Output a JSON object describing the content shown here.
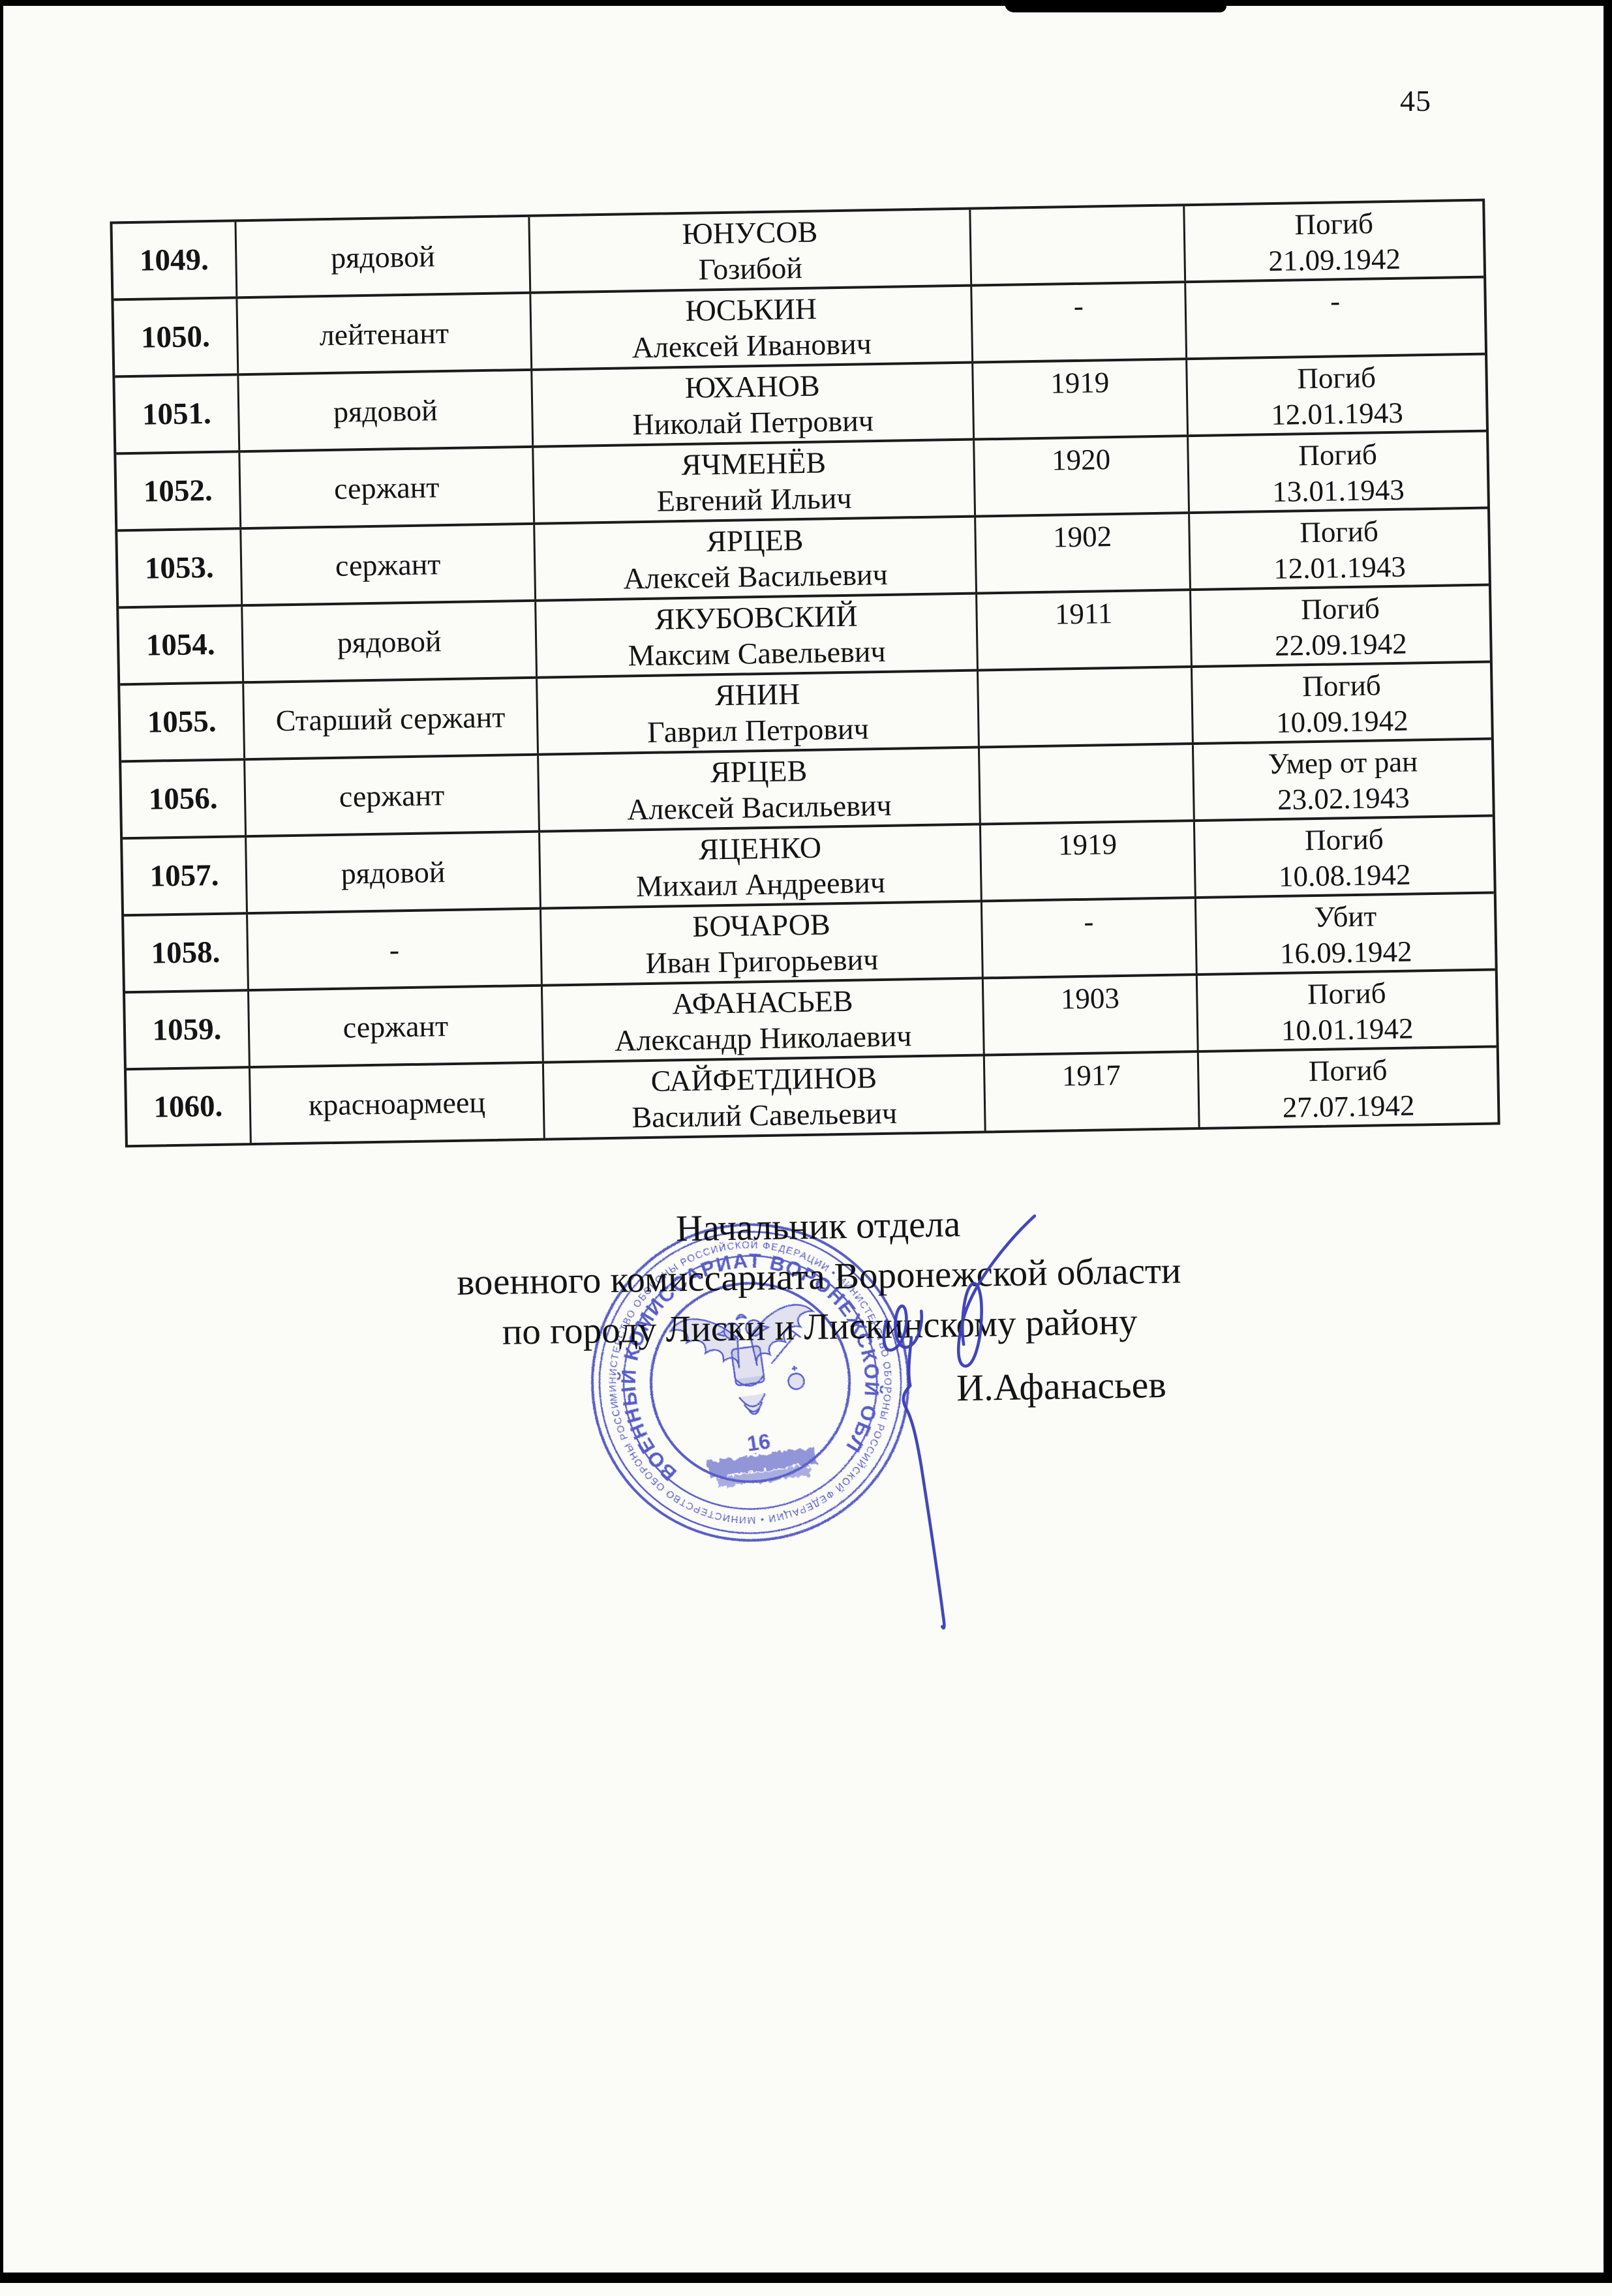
{
  "page": {
    "number": "45"
  },
  "table": {
    "rows": [
      {
        "num": "1049.",
        "rank": "рядовой",
        "surname": "ЮНУСОВ",
        "given": "Гозибой",
        "year": "",
        "status": "Погиб",
        "date": "21.09.1942"
      },
      {
        "num": "1050.",
        "rank": "лейтенант",
        "surname": "ЮСЬКИН",
        "given": "Алексей Иванович",
        "year": "-",
        "status": "-",
        "date": ""
      },
      {
        "num": "1051.",
        "rank": "рядовой",
        "surname": "ЮХАНОВ",
        "given": "Николай Петрович",
        "year": "1919",
        "status": "Погиб",
        "date": "12.01.1943"
      },
      {
        "num": "1052.",
        "rank": "сержант",
        "surname": "ЯЧМЕНЁВ",
        "given": "Евгений Ильич",
        "year": "1920",
        "status": "Погиб",
        "date": "13.01.1943"
      },
      {
        "num": "1053.",
        "rank": "сержант",
        "surname": "ЯРЦЕВ",
        "given": "Алексей Васильевич",
        "year": "1902",
        "status": "Погиб",
        "date": "12.01.1943"
      },
      {
        "num": "1054.",
        "rank": "рядовой",
        "surname": "ЯКУБОВСКИЙ",
        "given": "Максим Савельевич",
        "year": "1911",
        "status": "Погиб",
        "date": "22.09.1942"
      },
      {
        "num": "1055.",
        "rank": "Старший сержант",
        "surname": "ЯНИН",
        "given": "Гаврил Петрович",
        "year": "",
        "status": "Погиб",
        "date": "10.09.1942"
      },
      {
        "num": "1056.",
        "rank": "сержант",
        "surname": "ЯРЦЕВ",
        "given": "Алексей Васильевич",
        "year": "",
        "status": "Умер от ран",
        "date": "23.02.1943"
      },
      {
        "num": "1057.",
        "rank": "рядовой",
        "surname": "ЯЦЕНКО",
        "given": "Михаил Андреевич",
        "year": "1919",
        "status": "Погиб",
        "date": "10.08.1942"
      },
      {
        "num": "1058.",
        "rank": "-",
        "surname": "БОЧАРОВ",
        "given": "Иван Григорьевич",
        "year": "-",
        "status": "Убит",
        "date": "16.09.1942"
      },
      {
        "num": "1059.",
        "rank": "сержант",
        "surname": "АФАНАСЬЕВ",
        "given": "Александр Николаевич",
        "year": "1903",
        "status": "Погиб",
        "date": "10.01.1942"
      },
      {
        "num": "1060.",
        "rank": "красноармеец",
        "surname": "САЙФЕТДИНОВ",
        "given": "Василий Савельевич",
        "year": "1917",
        "status": "Погиб",
        "date": "27.07.1942"
      }
    ]
  },
  "footer": {
    "line1": "Начальник отдела",
    "line2": "военного комиссариата Воронежской области",
    "line3": "по городу Лиски и Лискинскому району",
    "signature_name": "И.Афанасьев"
  },
  "stamp": {
    "outer_ring_text": "МИНИСТЕРСТВО ОБОРОНЫ РОССИЙСКОЙ ФЕДЕРАЦИИ",
    "inner_ring_text": "ВОЕННЫЙ КОМИССАРИАТ ВОРОНЕЖСКОЙ ОБЛАСТИ",
    "center_number": "16"
  },
  "colors": {
    "ink": "#141416",
    "page": "#fbfbf8",
    "stamp_blue": "#4b51c3",
    "signature_blue": "#383db6"
  }
}
